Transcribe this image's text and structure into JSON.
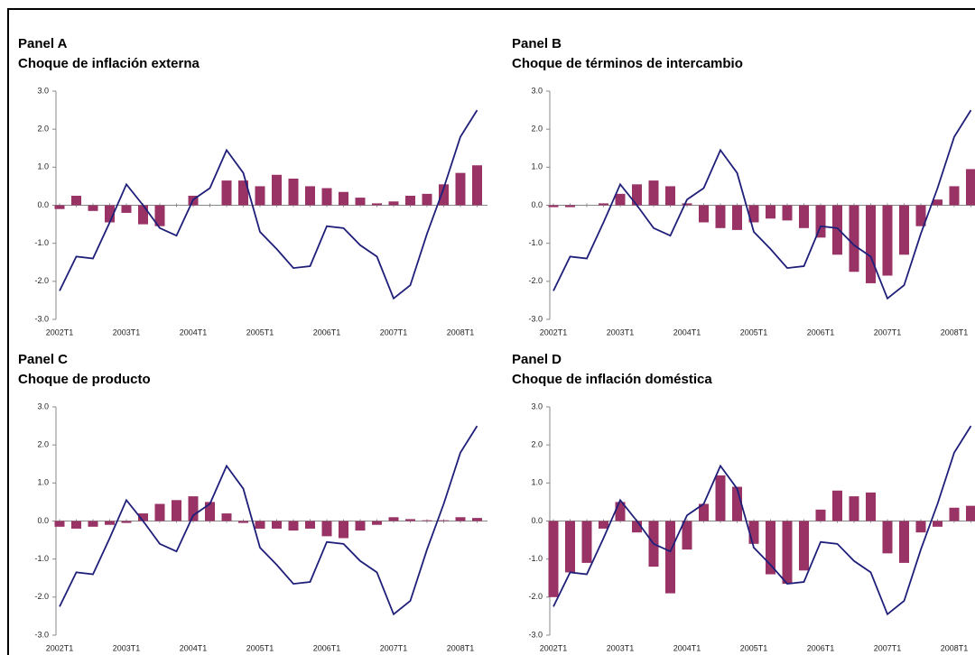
{
  "chart_data": [
    {
      "type": "bar",
      "title": "Panel A",
      "subtitle": "Choque de inflación externa",
      "categories": [
        "2002T1",
        null,
        null,
        null,
        "2003T1",
        null,
        null,
        null,
        "2004T1",
        null,
        null,
        null,
        "2005T1",
        null,
        null,
        null,
        "2006T1",
        null,
        null,
        null,
        "2007T1",
        null,
        null,
        null,
        "2008T1",
        null
      ],
      "series": [
        {
          "type": "bar",
          "color": "#993366",
          "values": [
            -0.1,
            0.25,
            -0.15,
            -0.45,
            -0.2,
            -0.5,
            -0.55,
            0.0,
            0.25,
            0.0,
            0.65,
            0.65,
            0.5,
            0.8,
            0.7,
            0.5,
            0.45,
            0.35,
            0.2,
            0.05,
            0.1,
            0.25,
            0.3,
            0.55,
            0.85,
            1.05
          ]
        },
        {
          "type": "line",
          "color": "#1f1f7a",
          "values": [
            -2.25,
            -1.35,
            -1.4,
            -0.45,
            0.55,
            0.0,
            -0.6,
            -0.8,
            0.15,
            0.45,
            1.45,
            0.85,
            -0.7,
            -1.15,
            -1.65,
            -1.6,
            -0.55,
            -0.6,
            -1.05,
            -1.35,
            -2.45,
            -2.1,
            -0.75,
            0.45,
            1.8,
            2.5
          ]
        }
      ],
      "ylim": [
        -3,
        3
      ],
      "yticks": [
        {
          "value": -3,
          "label": "-3.0"
        },
        {
          "value": -2,
          "label": "-2.0"
        },
        {
          "value": -1,
          "label": "-1.0"
        },
        {
          "value": 0,
          "label": "0.0"
        },
        {
          "value": 1,
          "label": "1.0"
        },
        {
          "value": 2,
          "label": "2.0"
        },
        {
          "value": 3,
          "label": "3.0"
        }
      ]
    },
    {
      "type": "bar",
      "title": "Panel B",
      "subtitle": "Choque de términos de intercambio",
      "categories": [
        "2002T1",
        null,
        null,
        null,
        "2003T1",
        null,
        null,
        null,
        "2004T1",
        null,
        null,
        null,
        "2005T1",
        null,
        null,
        null,
        "2006T1",
        null,
        null,
        null,
        "2007T1",
        null,
        null,
        null,
        "2008T1",
        null
      ],
      "series": [
        {
          "type": "bar",
          "color": "#993366",
          "values": [
            -0.05,
            -0.05,
            0.0,
            0.05,
            0.3,
            0.55,
            0.65,
            0.5,
            0.05,
            -0.45,
            -0.6,
            -0.65,
            -0.45,
            -0.35,
            -0.4,
            -0.6,
            -0.85,
            -1.3,
            -1.75,
            -2.05,
            -1.85,
            -1.3,
            -0.55,
            0.15,
            0.5,
            0.95
          ]
        },
        {
          "type": "line",
          "color": "#1f1f7a",
          "values": [
            -2.25,
            -1.35,
            -1.4,
            -0.45,
            0.55,
            0.0,
            -0.6,
            -0.8,
            0.15,
            0.45,
            1.45,
            0.85,
            -0.7,
            -1.15,
            -1.65,
            -1.6,
            -0.55,
            -0.6,
            -1.05,
            -1.35,
            -2.45,
            -2.1,
            -0.75,
            0.45,
            1.8,
            2.5
          ]
        }
      ],
      "ylim": [
        -3,
        3
      ],
      "yticks": [
        {
          "value": -3,
          "label": "-3.0"
        },
        {
          "value": -2,
          "label": "-2.0"
        },
        {
          "value": -1,
          "label": "-1.0"
        },
        {
          "value": 0,
          "label": "0.0"
        },
        {
          "value": 1,
          "label": "1.0"
        },
        {
          "value": 2,
          "label": "2.0"
        },
        {
          "value": 3,
          "label": "3.0"
        }
      ]
    },
    {
      "type": "bar",
      "title": "Panel C",
      "subtitle": "Choque de producto",
      "categories": [
        "2002T1",
        null,
        null,
        null,
        "2003T1",
        null,
        null,
        null,
        "2004T1",
        null,
        null,
        null,
        "2005T1",
        null,
        null,
        null,
        "2006T1",
        null,
        null,
        null,
        "2007T1",
        null,
        null,
        null,
        "2008T1",
        null
      ],
      "series": [
        {
          "type": "bar",
          "color": "#993366",
          "values": [
            -0.15,
            -0.2,
            -0.15,
            -0.1,
            -0.05,
            0.2,
            0.45,
            0.55,
            0.65,
            0.5,
            0.2,
            -0.05,
            -0.2,
            -0.2,
            -0.25,
            -0.2,
            -0.4,
            -0.45,
            -0.25,
            -0.1,
            0.1,
            0.05,
            0.02,
            0.02,
            0.1,
            0.08
          ]
        },
        {
          "type": "line",
          "color": "#1f1f7a",
          "values": [
            -2.25,
            -1.35,
            -1.4,
            -0.45,
            0.55,
            0.0,
            -0.6,
            -0.8,
            0.15,
            0.45,
            1.45,
            0.85,
            -0.7,
            -1.15,
            -1.65,
            -1.6,
            -0.55,
            -0.6,
            -1.05,
            -1.35,
            -2.45,
            -2.1,
            -0.75,
            0.45,
            1.8,
            2.5
          ]
        }
      ],
      "ylim": [
        -3,
        3
      ],
      "yticks": [
        {
          "value": -3,
          "label": "-3.0"
        },
        {
          "value": -2,
          "label": "-2.0"
        },
        {
          "value": -1,
          "label": "-1.0"
        },
        {
          "value": 0,
          "label": "0.0"
        },
        {
          "value": 1,
          "label": "1.0"
        },
        {
          "value": 2,
          "label": "2.0"
        },
        {
          "value": 3,
          "label": "3.0"
        }
      ]
    },
    {
      "type": "bar",
      "title": "Panel D",
      "subtitle": "Choque de inflación doméstica",
      "categories": [
        "2002T1",
        null,
        null,
        null,
        "2003T1",
        null,
        null,
        null,
        "2004T1",
        null,
        null,
        null,
        "2005T1",
        null,
        null,
        null,
        "2006T1",
        null,
        null,
        null,
        "2007T1",
        null,
        null,
        null,
        "2008T1",
        null
      ],
      "series": [
        {
          "type": "bar",
          "color": "#993366",
          "values": [
            -2.0,
            -1.35,
            -1.1,
            -0.2,
            0.5,
            -0.3,
            -1.2,
            -1.9,
            -0.75,
            0.45,
            1.2,
            0.9,
            -0.6,
            -1.4,
            -1.65,
            -1.3,
            0.3,
            0.8,
            0.65,
            0.75,
            -0.85,
            -1.1,
            -0.3,
            -0.15,
            0.35,
            0.4
          ]
        },
        {
          "type": "line",
          "color": "#1f1f7a",
          "values": [
            -2.25,
            -1.35,
            -1.4,
            -0.45,
            0.55,
            0.0,
            -0.6,
            -0.8,
            0.15,
            0.45,
            1.45,
            0.85,
            -0.7,
            -1.15,
            -1.65,
            -1.6,
            -0.55,
            -0.6,
            -1.05,
            -1.35,
            -2.45,
            -2.1,
            -0.75,
            0.45,
            1.8,
            2.5
          ]
        }
      ],
      "ylim": [
        -3,
        3
      ],
      "yticks": [
        {
          "value": -3,
          "label": "-3.0"
        },
        {
          "value": -2,
          "label": "-2.0"
        },
        {
          "value": -1,
          "label": "-1.0"
        },
        {
          "value": 0,
          "label": "0.0"
        },
        {
          "value": 1,
          "label": "1.0"
        },
        {
          "value": 2,
          "label": "2.0"
        },
        {
          "value": 3,
          "label": "3.0"
        }
      ]
    }
  ]
}
